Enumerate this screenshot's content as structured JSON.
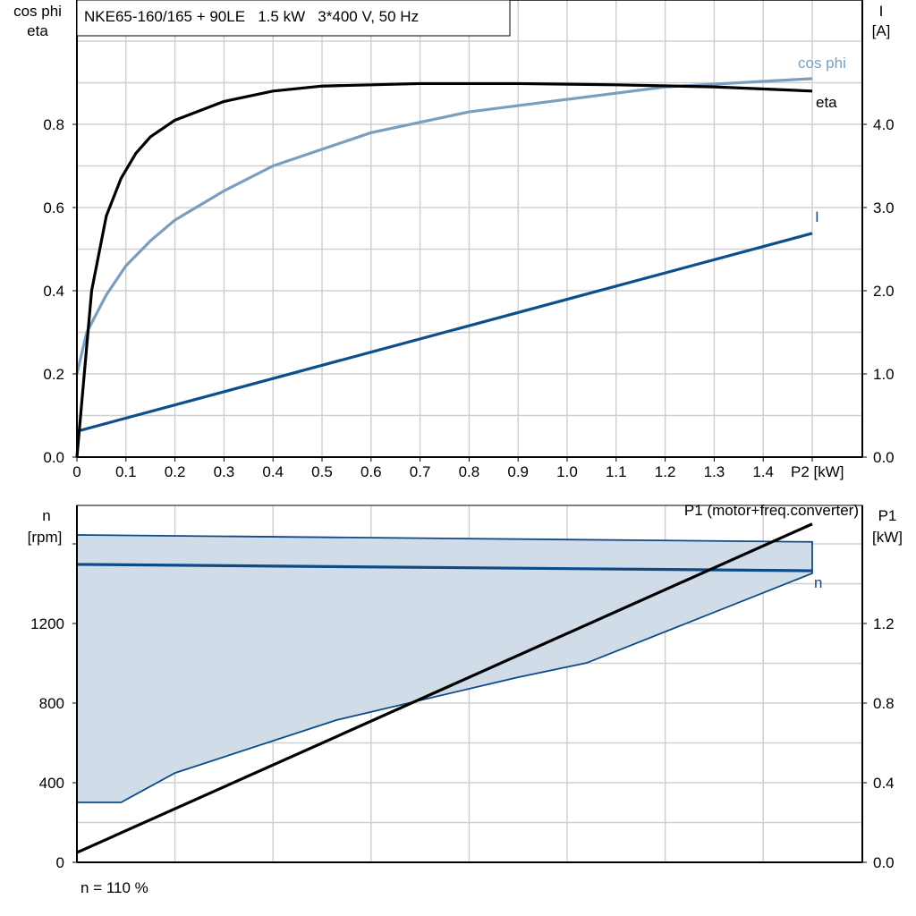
{
  "chart_data": [
    {
      "type": "line",
      "title": "NKE65-160/165 + 90LE   1.5 kW   3*400 V, 50 Hz",
      "xlabel": "P2 [kW]",
      "ylabel_left": [
        "cos phi",
        "eta"
      ],
      "ylabel_right": [
        "I",
        "[A]"
      ],
      "x_ticks": [
        "0",
        "0.1",
        "0.2",
        "0.3",
        "0.4",
        "0.5",
        "0.6",
        "0.7",
        "0.8",
        "0.9",
        "1.0",
        "1.1",
        "1.2",
        "1.3",
        "1.4"
      ],
      "y_left_ticks": [
        "0.0",
        "0.2",
        "0.4",
        "0.6",
        "0.8"
      ],
      "y_right_ticks": [
        "0.0",
        "1.0",
        "2.0",
        "3.0",
        "4.0"
      ],
      "xlim": [
        0,
        1.6
      ],
      "ylim_left": [
        0,
        1.1
      ],
      "ylim_right": [
        0,
        5.5
      ],
      "grid": true,
      "series": [
        {
          "name": "eta",
          "axis": "left",
          "color": "#000000",
          "x": [
            0,
            0.03,
            0.06,
            0.09,
            0.12,
            0.15,
            0.2,
            0.3,
            0.4,
            0.5,
            0.7,
            0.9,
            1.1,
            1.3,
            1.5
          ],
          "y": [
            0,
            0.4,
            0.58,
            0.67,
            0.73,
            0.77,
            0.81,
            0.855,
            0.88,
            0.892,
            0.898,
            0.898,
            0.895,
            0.89,
            0.88
          ]
        },
        {
          "name": "cos phi",
          "axis": "left",
          "color": "#7a9ec0",
          "x": [
            0,
            0.02,
            0.06,
            0.1,
            0.15,
            0.2,
            0.3,
            0.4,
            0.5,
            0.6,
            0.8,
            1.0,
            1.2,
            1.5
          ],
          "y": [
            0.2,
            0.3,
            0.39,
            0.46,
            0.52,
            0.57,
            0.64,
            0.7,
            0.74,
            0.78,
            0.83,
            0.86,
            0.89,
            0.91
          ]
        },
        {
          "name": "I",
          "axis": "right",
          "color": "#0d4f8b",
          "x": [
            0,
            1.5
          ],
          "y": [
            0.31,
            2.69
          ]
        }
      ]
    },
    {
      "type": "area",
      "xlim": [
        0,
        1.6
      ],
      "ylabel_left": [
        "n",
        "[rpm]"
      ],
      "ylabel_right": [
        "P1",
        "[kW]"
      ],
      "y_left_ticks": [
        "0",
        "400",
        "800",
        "1200"
      ],
      "y_right_ticks": [
        "0.0",
        "0.4",
        "0.8",
        "1.2"
      ],
      "ylim_left": [
        0,
        1800
      ],
      "ylim_right": [
        0,
        1.8
      ],
      "grid": true,
      "fill_color": "#d0dde9",
      "band_upper": {
        "x": [
          0,
          1.5
        ],
        "y": [
          1645,
          1610
        ]
      },
      "band_lower": {
        "x": [
          0,
          0.09,
          0.2,
          0.53,
          0.9,
          1.04,
          1.5
        ],
        "y": [
          301,
          301,
          449,
          715,
          930,
          1002,
          1452
        ]
      },
      "series": [
        {
          "name": "n",
          "axis": "left",
          "color": "#0d4a86",
          "x": [
            0,
            1.5
          ],
          "y": [
            1497,
            1465
          ]
        },
        {
          "name": "P1 (motor+freq.converter)",
          "axis": "right",
          "color": "#000000",
          "x": [
            0,
            1.5
          ],
          "y": [
            0.049,
            1.7
          ]
        }
      ],
      "note": "n = 110 %"
    }
  ]
}
